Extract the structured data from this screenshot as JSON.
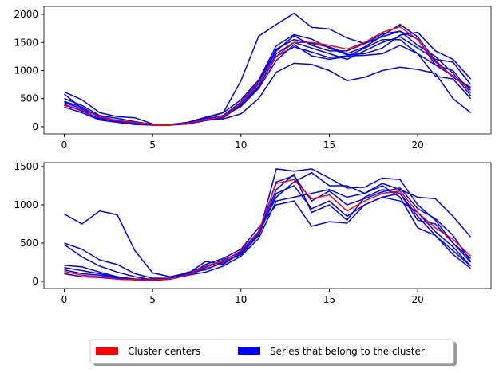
{
  "chart_data": [
    {
      "type": "line",
      "xlim": [
        -1.15,
        24.15
      ],
      "ylim": [
        -128,
        2142
      ],
      "xticks": [
        0,
        5,
        10,
        15,
        20
      ],
      "yticks": [
        0,
        500,
        1000,
        1500,
        2000
      ],
      "x": [
        0,
        1,
        2,
        3,
        4,
        5,
        6,
        7,
        8,
        9,
        10,
        11,
        12,
        13,
        14,
        15,
        16,
        17,
        18,
        19,
        20,
        21,
        22,
        23
      ],
      "series": [
        {
          "color": "#0000ff",
          "values": [
            380,
            300,
            180,
            100,
            80,
            40,
            40,
            70,
            150,
            250,
            820,
            1610,
            1820,
            2020,
            1770,
            1740,
            1580,
            1480,
            1600,
            1700,
            1560,
            1100,
            900,
            700
          ]
        },
        {
          "color": "#0000ff",
          "values": [
            580,
            330,
            180,
            110,
            70,
            40,
            40,
            60,
            130,
            140,
            230,
            500,
            970,
            1130,
            1110,
            1000,
            820,
            880,
            1000,
            1060,
            1020,
            950,
            500,
            250
          ]
        },
        {
          "color": "#0000ff",
          "values": [
            620,
            480,
            250,
            180,
            160,
            50,
            40,
            80,
            170,
            250,
            480,
            830,
            1440,
            1640,
            1560,
            1400,
            1280,
            1300,
            1400,
            1630,
            1680,
            1350,
            1200,
            850
          ]
        },
        {
          "color": "#0000ff",
          "values": [
            450,
            350,
            160,
            90,
            50,
            30,
            30,
            60,
            120,
            160,
            400,
            720,
            1250,
            1420,
            1330,
            1230,
            1260,
            1270,
            1300,
            1450,
            1300,
            1100,
            1000,
            600
          ]
        },
        {
          "color": "#0000ff",
          "values": [
            350,
            250,
            120,
            80,
            40,
            30,
            30,
            50,
            110,
            160,
            380,
            700,
            1300,
            1500,
            1400,
            1300,
            1200,
            1350,
            1500,
            1600,
            1400,
            1200,
            1150,
            750
          ]
        },
        {
          "color": "#0000ff",
          "values": [
            500,
            380,
            200,
            150,
            90,
            40,
            40,
            60,
            120,
            180,
            420,
            760,
            1350,
            1620,
            1450,
            1350,
            1350,
            1480,
            1650,
            1700,
            1450,
            1250,
            950,
            550
          ]
        },
        {
          "color": "#0000ff",
          "values": [
            400,
            280,
            140,
            120,
            60,
            30,
            30,
            70,
            130,
            190,
            360,
            680,
            1180,
            1460,
            1260,
            1200,
            1250,
            1400,
            1550,
            1550,
            1300,
            900,
            850,
            500
          ]
        },
        {
          "color": "#0000ff",
          "values": [
            430,
            320,
            190,
            110,
            70,
            40,
            40,
            70,
            140,
            200,
            440,
            800,
            1380,
            1550,
            1480,
            1420,
            1300,
            1420,
            1620,
            1820,
            1600,
            1180,
            880,
            680
          ]
        },
        {
          "color": "#ff0000",
          "values": [
            390,
            300,
            180,
            110,
            80,
            40,
            40,
            60,
            130,
            180,
            420,
            780,
            1250,
            1500,
            1500,
            1450,
            1380,
            1500,
            1680,
            1780,
            1550,
            1150,
            900,
            650
          ]
        }
      ]
    },
    {
      "type": "line",
      "xlim": [
        -1.15,
        24.15
      ],
      "ylim": [
        -94,
        1552
      ],
      "xticks": [
        0,
        5,
        10,
        15,
        20
      ],
      "yticks": [
        0,
        500,
        1000,
        1500
      ],
      "x": [
        0,
        1,
        2,
        3,
        4,
        5,
        6,
        7,
        8,
        9,
        10,
        11,
        12,
        13,
        14,
        15,
        16,
        17,
        18,
        19,
        20,
        21,
        22,
        23
      ],
      "series": [
        {
          "color": "#0000ff",
          "values": [
            880,
            750,
            920,
            870,
            400,
            110,
            60,
            110,
            200,
            260,
            400,
            650,
            1100,
            1300,
            1420,
            1250,
            1250,
            1150,
            1280,
            1200,
            1100,
            1080,
            850,
            580
          ]
        },
        {
          "color": "#0000ff",
          "values": [
            500,
            420,
            280,
            220,
            100,
            40,
            40,
            100,
            180,
            280,
            380,
            600,
            1470,
            1440,
            1470,
            1350,
            1220,
            1230,
            1350,
            1330,
            1000,
            800,
            500,
            300
          ]
        },
        {
          "color": "#0000ff",
          "values": [
            480,
            320,
            200,
            120,
            60,
            20,
            30,
            80,
            220,
            300,
            420,
            700,
            1000,
            1050,
            720,
            780,
            760,
            1000,
            1100,
            1150,
            850,
            600,
            400,
            200
          ]
        },
        {
          "color": "#0000ff",
          "values": [
            210,
            190,
            120,
            60,
            30,
            20,
            40,
            100,
            260,
            220,
            380,
            640,
            1200,
            1400,
            900,
            1000,
            800,
            1100,
            1200,
            1150,
            800,
            750,
            500,
            250
          ]
        },
        {
          "color": "#0000ff",
          "values": [
            150,
            100,
            80,
            40,
            20,
            20,
            30,
            120,
            150,
            250,
            350,
            600,
            1150,
            1250,
            950,
            1050,
            850,
            1000,
            1100,
            1050,
            900,
            650,
            450,
            200
          ]
        },
        {
          "color": "#0000ff",
          "values": [
            100,
            60,
            50,
            30,
            20,
            10,
            30,
            80,
            120,
            200,
            330,
            560,
            1050,
            1100,
            1150,
            1200,
            1100,
            1150,
            1250,
            1100,
            700,
            600,
            350,
            170
          ]
        },
        {
          "color": "#0000ff",
          "values": [
            180,
            140,
            100,
            50,
            30,
            30,
            40,
            90,
            160,
            240,
            370,
            620,
            1300,
            1380,
            1050,
            1180,
            1000,
            1080,
            1170,
            1220,
            950,
            820,
            600,
            260
          ]
        },
        {
          "color": "#ff0000",
          "values": [
            130,
            80,
            60,
            30,
            20,
            20,
            30,
            90,
            200,
            260,
            400,
            650,
            1280,
            1330,
            1080,
            1130,
            920,
            1050,
            1150,
            1180,
            900,
            700,
            550,
            330
          ]
        }
      ]
    }
  ],
  "legend": {
    "items": [
      {
        "label": "Cluster centers",
        "color": "#ff0000"
      },
      {
        "label": "Series that belong to the cluster",
        "color": "#0000ff"
      }
    ]
  }
}
